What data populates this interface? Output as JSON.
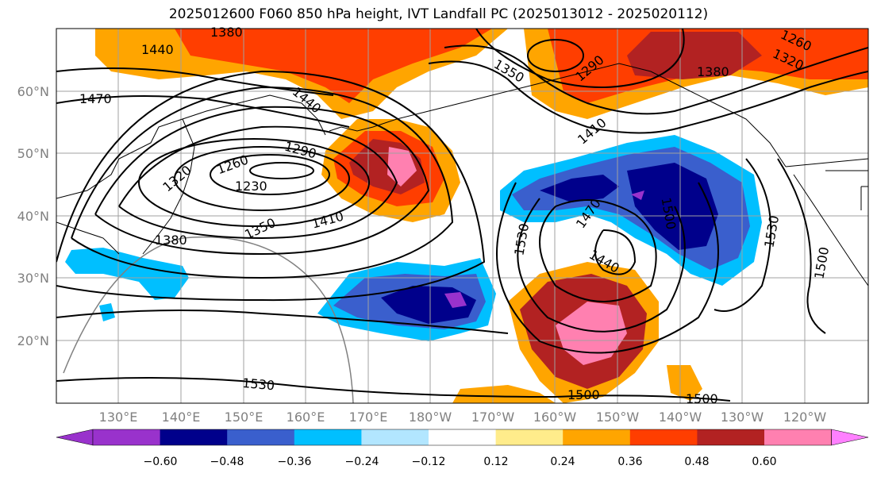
{
  "title": "2025012600 F060 850 hPa height, IVT Landfall PC (2025013012 - 2025020112)",
  "latitude_ticks": [
    "60°N",
    "50°N",
    "40°N",
    "30°N",
    "20°N"
  ],
  "longitude_ticks": [
    "130°E",
    "140°E",
    "150°E",
    "160°E",
    "170°E",
    "180°W",
    "170°W",
    "160°W",
    "150°W",
    "140°W",
    "130°W",
    "120°W"
  ],
  "contour_labels": [
    "1380",
    "1440",
    "1470",
    "1440",
    "1320",
    "1260",
    "1290",
    "1230",
    "1350",
    "1410",
    "1380",
    "1350",
    "1290",
    "1410",
    "1260",
    "1320",
    "1380",
    "1470",
    "1500",
    "1530",
    "1440",
    "1530",
    "1500",
    "1530",
    "1500",
    "1500"
  ],
  "colorbar": {
    "labels": [
      "−0.60",
      "−0.48",
      "−0.36",
      "−0.24",
      "−0.12",
      "0.12",
      "0.24",
      "0.36",
      "0.48",
      "0.60"
    ],
    "colors": [
      "#9932cc",
      "#00008b",
      "#3a5fcd",
      "#00bfff",
      "#b2e6ff",
      "#ffffff",
      "#ffec8b",
      "#ffa500",
      "#ff3e00",
      "#b22222",
      "#ff80b0",
      "#ff80ff"
    ]
  }
}
